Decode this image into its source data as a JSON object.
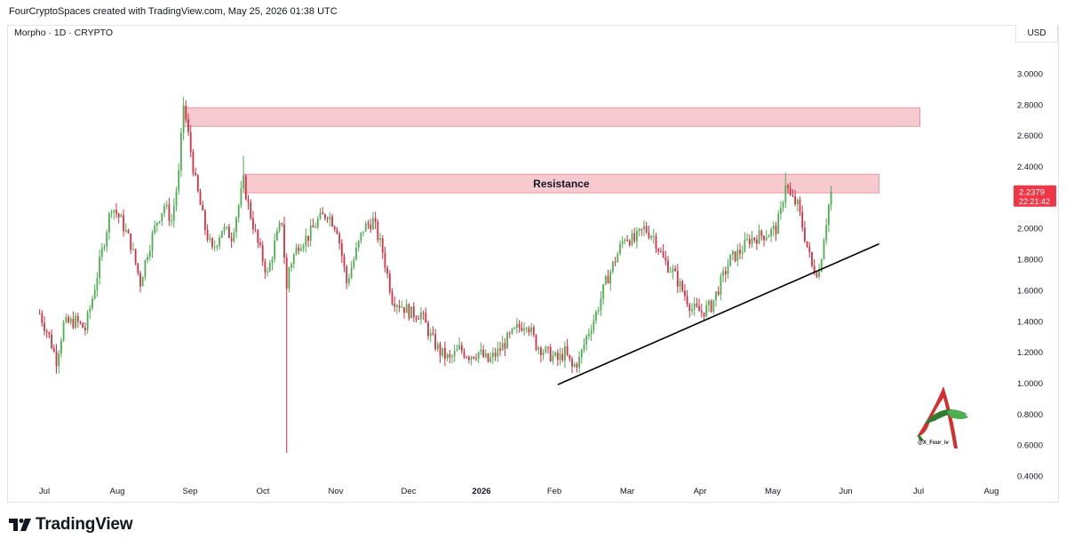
{
  "header": {
    "attribution": "FourCryptoSpaces created with TradingView.com, May 25, 2026 01:38 UTC",
    "symbol": "Morpho · 1D · CRYPTO",
    "currency": "USD"
  },
  "footer": {
    "brand": "TradingView"
  },
  "watermark": {
    "handle": "@X_Four_iv"
  },
  "price_label": {
    "price": "2.2379",
    "countdown": "22:21:42"
  },
  "colors": {
    "up": "#4caf50",
    "down": "#d32f45",
    "zone_fill": "#f7c5cc",
    "zone_stroke": "#e88b98",
    "label_bg": "#f23645"
  },
  "chart_data": {
    "type": "candlestick",
    "title": "",
    "xlabel": "",
    "ylabel": "",
    "ylim": [
      0.4,
      3.0
    ],
    "y_ticks": [
      "3.0000",
      "2.8000",
      "2.6000",
      "2.4000",
      "2.2000",
      "2.0000",
      "1.8000",
      "1.6000",
      "1.4000",
      "1.2000",
      "1.0000",
      "0.8000",
      "0.6000",
      "0.4000"
    ],
    "x_ticks": [
      "Jul",
      "Aug",
      "Sep",
      "Oct",
      "Nov",
      "Dec",
      "2026",
      "Feb",
      "Mar",
      "Apr",
      "May",
      "Jun",
      "Jul",
      "Aug"
    ],
    "last_price": 2.2379,
    "price_path": [
      [
        "2025-06-29",
        1.45
      ],
      [
        "2025-07-03",
        1.3
      ],
      [
        "2025-07-06",
        1.15
      ],
      [
        "2025-07-09",
        1.38
      ],
      [
        "2025-07-14",
        1.4
      ],
      [
        "2025-07-18",
        1.35
      ],
      [
        "2025-07-21",
        1.55
      ],
      [
        "2025-07-25",
        1.85
      ],
      [
        "2025-07-29",
        2.15
      ],
      [
        "2025-08-02",
        2.05
      ],
      [
        "2025-08-06",
        1.9
      ],
      [
        "2025-08-10",
        1.65
      ],
      [
        "2025-08-13",
        1.85
      ],
      [
        "2025-08-17",
        2.05
      ],
      [
        "2025-08-20",
        2.15
      ],
      [
        "2025-08-23",
        2.05
      ],
      [
        "2025-08-26",
        2.35
      ],
      [
        "2025-08-28",
        2.8
      ],
      [
        "2025-08-30",
        2.6
      ],
      [
        "2025-09-02",
        2.3
      ],
      [
        "2025-09-06",
        2.0
      ],
      [
        "2025-09-09",
        1.85
      ],
      [
        "2025-09-13",
        2.0
      ],
      [
        "2025-09-17",
        1.95
      ],
      [
        "2025-09-20",
        2.15
      ],
      [
        "2025-09-22",
        2.3
      ],
      [
        "2025-09-24",
        2.15
      ],
      [
        "2025-09-28",
        1.9
      ],
      [
        "2025-10-02",
        1.7
      ],
      [
        "2025-10-05",
        1.9
      ],
      [
        "2025-10-08",
        2.05
      ],
      [
        "2025-10-10",
        1.6
      ],
      [
        "2025-10-11",
        1.75
      ],
      [
        "2025-10-15",
        1.9
      ],
      [
        "2025-10-19",
        1.95
      ],
      [
        "2025-10-23",
        2.05
      ],
      [
        "2025-10-27",
        2.1
      ],
      [
        "2025-10-31",
        2.0
      ],
      [
        "2025-11-04",
        1.65
      ],
      [
        "2025-11-07",
        1.8
      ],
      [
        "2025-11-11",
        2.0
      ],
      [
        "2025-11-15",
        2.05
      ],
      [
        "2025-11-19",
        1.85
      ],
      [
        "2025-11-23",
        1.55
      ],
      [
        "2025-11-27",
        1.5
      ],
      [
        "2025-12-01",
        1.45
      ],
      [
        "2025-12-05",
        1.45
      ],
      [
        "2025-12-09",
        1.3
      ],
      [
        "2025-12-13",
        1.2
      ],
      [
        "2025-12-17",
        1.15
      ],
      [
        "2025-12-21",
        1.22
      ],
      [
        "2025-12-25",
        1.18
      ],
      [
        "2025-12-29",
        1.2
      ],
      [
        "2026-01-02",
        1.14
      ],
      [
        "2026-01-06",
        1.2
      ],
      [
        "2026-01-10",
        1.28
      ],
      [
        "2026-01-14",
        1.35
      ],
      [
        "2026-01-18",
        1.4
      ],
      [
        "2026-01-22",
        1.25
      ],
      [
        "2026-01-26",
        1.2
      ],
      [
        "2026-01-31",
        1.15
      ],
      [
        "2026-02-03",
        1.2
      ],
      [
        "2026-02-06",
        1.1
      ],
      [
        "2026-02-09",
        1.15
      ],
      [
        "2026-02-12",
        1.3
      ],
      [
        "2026-02-16",
        1.45
      ],
      [
        "2026-02-20",
        1.65
      ],
      [
        "2026-02-24",
        1.8
      ],
      [
        "2026-02-28",
        1.95
      ],
      [
        "2026-03-04",
        1.92
      ],
      [
        "2026-03-08",
        2.0
      ],
      [
        "2026-03-12",
        1.95
      ],
      [
        "2026-03-16",
        1.8
      ],
      [
        "2026-03-20",
        1.72
      ],
      [
        "2026-03-24",
        1.6
      ],
      [
        "2026-03-28",
        1.48
      ],
      [
        "2026-04-01",
        1.46
      ],
      [
        "2026-04-05",
        1.5
      ],
      [
        "2026-04-09",
        1.65
      ],
      [
        "2026-04-13",
        1.8
      ],
      [
        "2026-04-17",
        1.85
      ],
      [
        "2026-04-21",
        1.93
      ],
      [
        "2026-04-25",
        1.95
      ],
      [
        "2026-04-29",
        1.97
      ],
      [
        "2026-05-02",
        2.0
      ],
      [
        "2026-05-04",
        2.1
      ],
      [
        "2026-05-06",
        2.3
      ],
      [
        "2026-05-08",
        2.2
      ],
      [
        "2026-05-11",
        2.15
      ],
      [
        "2026-05-14",
        1.95
      ],
      [
        "2026-05-17",
        1.75
      ],
      [
        "2026-05-20",
        1.72
      ],
      [
        "2026-05-22",
        1.95
      ],
      [
        "2026-05-24",
        2.15
      ],
      [
        "2026-05-25",
        2.2379
      ]
    ],
    "annotations": {
      "zones": [
        {
          "label": "",
          "from": "2025-08-28",
          "to": "2026-07-01",
          "y_low": 2.66,
          "y_high": 2.78
        },
        {
          "label": "Resistance",
          "from": "2025-09-22",
          "to": "2026-06-14",
          "y_low": 2.23,
          "y_high": 2.35
        }
      ],
      "trendline": {
        "from": [
          "2026-01-31",
          0.99
        ],
        "to": [
          "2026-06-14",
          1.9
        ]
      }
    }
  }
}
